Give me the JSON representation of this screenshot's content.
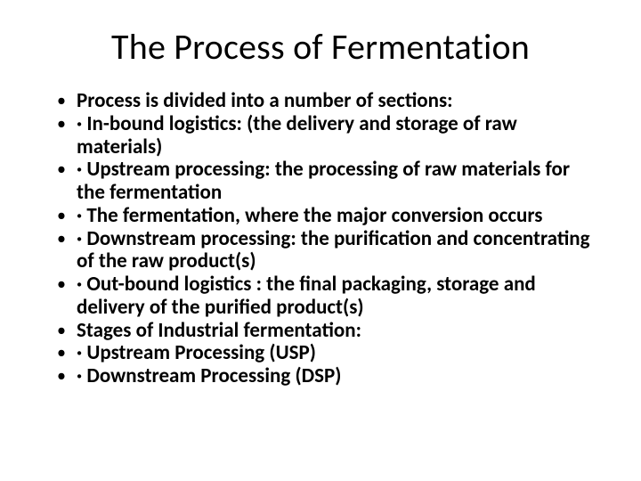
{
  "slide": {
    "title": "The Process of Fermentation",
    "title_fontsize": 40,
    "title_color": "#000000",
    "body_fontsize": 23,
    "body_fontweight": 700,
    "bullet_color": "#000000",
    "background_color": "#ffffff",
    "bullets": [
      "Process is divided into a number of sections:",
      "· In-bound logistics: (the delivery and storage of raw materials)",
      "· Upstream processing: the processing of raw materials for the fermentation",
      "· The fermentation, where the major conversion occurs",
      "· Downstream processing: the purification and concentrating of the raw product(s)",
      "· Out-bound logistics : the final packaging, storage and delivery of the purified product(s)",
      "Stages of Industrial fermentation:",
      "· Upstream Processing (USP)",
      "· Downstream Processing (DSP)"
    ]
  }
}
